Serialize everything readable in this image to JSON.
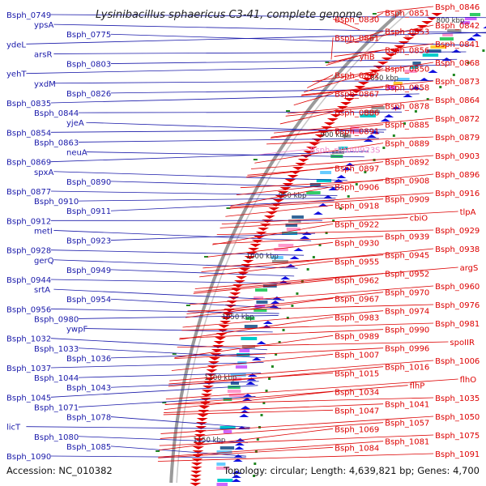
{
  "title": "Lysinibacillus sphaericus C3-41, complete genome",
  "footer": {
    "accession": "Accession: NC_010382",
    "topology": "Topology: circular; Length: 4,639,821 bp; Genes: 4,700"
  },
  "colors": {
    "left_labels": "#1a1aaa",
    "right_labels": "#dd0000",
    "rRNA_label": "#ee88cc",
    "forward_features": "#e00000",
    "reverse_features": "#1010e0",
    "backbone": "#9a9a9a",
    "gc_marks": "#228822"
  },
  "ticks": [
    "800 kbp",
    "850 kbp",
    "900 kbp",
    "950 kbp",
    "1000 kbp",
    "1050 kbp",
    "1100 kbp",
    "1150 kbp"
  ],
  "left_labels": [
    "Bsph_0749",
    "ypsA",
    "Bsph_0775",
    "ydeL",
    "arsR",
    "Bsph_0803",
    "yehT",
    "yxdM",
    "Bsph_0826",
    "Bsph_0835",
    "Bsph_0844",
    "yjeA",
    "Bsph_0854",
    "Bsph_0863",
    "neuA",
    "Bsph_0869",
    "spxA",
    "Bsph_0890",
    "Bsph_0877",
    "Bsph_0910",
    "Bsph_0911",
    "Bsph_0912",
    "metI",
    "Bsph_0923",
    "Bsph_0928",
    "gerQ",
    "Bsph_0949",
    "Bsph_0944",
    "srtA",
    "Bsph_0954",
    "Bsph_0956",
    "Bsph_0980",
    "ywpF",
    "Bsph_1032",
    "Bsph_1033",
    "Bsph_1036",
    "Bsph_1037",
    "Bsph_1044",
    "Bsph_1043",
    "Bsph_1045",
    "Bsph_1071",
    "Bsph_1078",
    "licT",
    "Bsph_1080",
    "Bsph_1085",
    "Bsph_1090"
  ],
  "right_labels": [
    "Bsph_0846",
    "Bsph_0851",
    "Bsph_0830",
    "Bsph_0842",
    "Bsph_0853",
    "Bsph_0861",
    "Bsph_0841",
    "Bsph_0856",
    "yfiB",
    "Bsph_0868",
    "Bsph_0850",
    "Bsph_0862",
    "Bsph_0873",
    "Bsph_0858",
    "Bsph_0867",
    "Bsph_0864",
    "Bsph_0878",
    "Bsph_0886",
    "Bsph_0872",
    "Bsph_0885",
    "Bsph_0891",
    "Bsph_0879",
    "Bsph_0889",
    "Bsph_rRNA0923S",
    "Bsph_0903",
    "Bsph_0892",
    "Bsph_0897",
    "Bsph_0896",
    "Bsph_0908",
    "Bsph_0906",
    "Bsph_0916",
    "Bsph_0909",
    "Bsph_0918",
    "tlpA",
    "cbiO",
    "Bsph_0922",
    "Bsph_0929",
    "Bsph_0939",
    "Bsph_0930",
    "Bsph_0938",
    "Bsph_0945",
    "Bsph_0955",
    "argS",
    "Bsph_0952",
    "Bsph_0962",
    "Bsph_0960",
    "Bsph_0970",
    "Bsph_0967",
    "Bsph_0976",
    "Bsph_0974",
    "Bsph_0983",
    "Bsph_0981",
    "Bsph_0990",
    "Bsph_0989",
    "spoIIR",
    "Bsph_0996",
    "Bsph_1007",
    "Bsph_1006",
    "Bsph_1016",
    "Bsph_1015",
    "flhO",
    "flhP",
    "Bsph_1034",
    "Bsph_1035",
    "Bsph_1041",
    "Bsph_1047",
    "Bsph_1050",
    "Bsph_1057",
    "Bsph_1069",
    "Bsph_1075",
    "Bsph_1081",
    "Bsph_1084",
    "Bsph_1091"
  ]
}
